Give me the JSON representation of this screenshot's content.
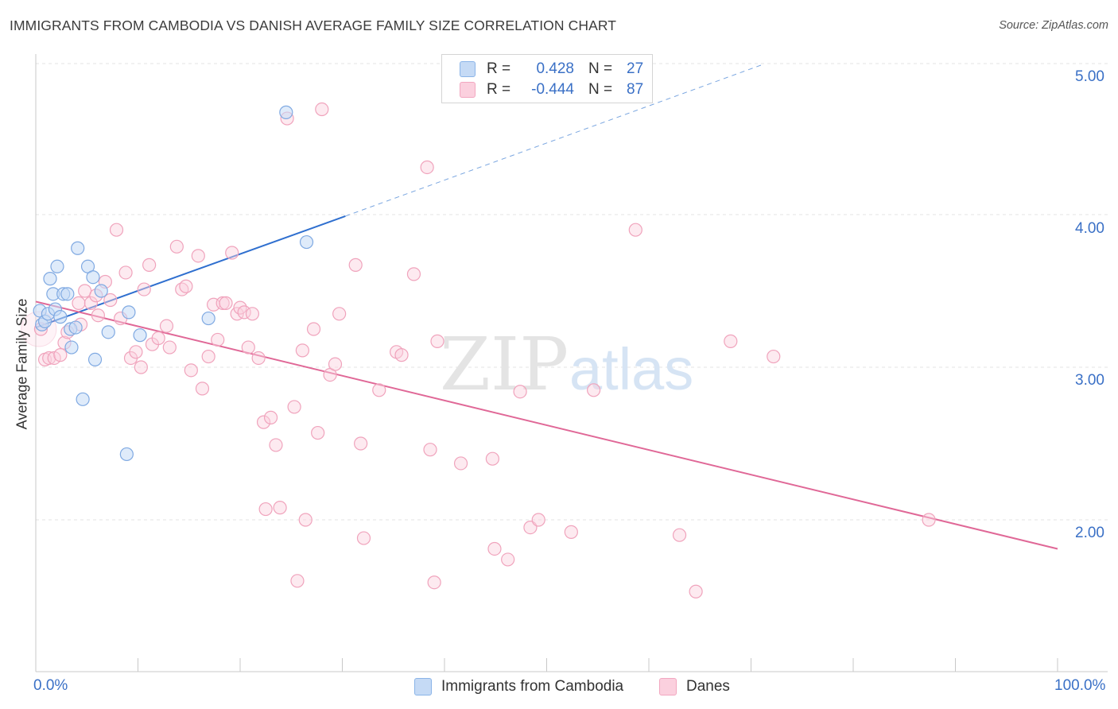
{
  "title": "IMMIGRANTS FROM CAMBODIA VS DANISH AVERAGE FAMILY SIZE CORRELATION CHART",
  "source": "Source: ZipAtlas.com",
  "watermark": {
    "zip": "ZIP",
    "atlas": "atlas"
  },
  "legend": {
    "rows": [
      {
        "r_label": "R =",
        "r_value": "0.428",
        "n_label": "N =",
        "n_value": "27",
        "color": "#8ab4e8",
        "fill": "#c5daf5"
      },
      {
        "r_label": "R =",
        "r_value": "-0.444",
        "n_label": "N =",
        "n_value": "87",
        "color": "#f2a7c0",
        "fill": "#fbd0de"
      }
    ]
  },
  "bottom_legend": [
    {
      "label": "Immigrants from Cambodia",
      "color": "#8ab4e8",
      "fill": "#c5daf5"
    },
    {
      "label": "Danes",
      "color": "#f2a7c0",
      "fill": "#fbd0de"
    }
  ],
  "x_ticks": {
    "left": "0.0%",
    "right": "100.0%"
  },
  "y_ticks": [
    "5.00",
    "4.00",
    "3.00",
    "2.00"
  ],
  "y_axis_title": "Average Family Size",
  "chart_data": {
    "type": "scatter",
    "title": "IMMIGRANTS FROM CAMBODIA VS DANISH AVERAGE FAMILY SIZE CORRELATION CHART",
    "xlabel": "",
    "ylabel": "Average Family Size",
    "xlim": [
      0,
      100
    ],
    "ylim": [
      1.0,
      5.1
    ],
    "y_ticks": [
      2.0,
      3.0,
      4.0,
      5.0
    ],
    "grid": "horizontal dashed",
    "legend_position": "top-center",
    "series": [
      {
        "name": "Immigrants from Cambodia",
        "color": "#6a9fe0",
        "R": 0.428,
        "N": 27,
        "points": [
          [
            0.4,
            3.37
          ],
          [
            0.6,
            3.28
          ],
          [
            0.9,
            3.3
          ],
          [
            1.2,
            3.35
          ],
          [
            1.4,
            3.58
          ],
          [
            1.7,
            3.48
          ],
          [
            1.9,
            3.38
          ],
          [
            2.1,
            3.66
          ],
          [
            2.4,
            3.33
          ],
          [
            2.7,
            3.48
          ],
          [
            3.1,
            3.48
          ],
          [
            3.4,
            3.25
          ],
          [
            3.5,
            3.13
          ],
          [
            3.9,
            3.26
          ],
          [
            4.1,
            3.78
          ],
          [
            4.6,
            2.79
          ],
          [
            5.1,
            3.66
          ],
          [
            5.6,
            3.59
          ],
          [
            5.8,
            3.05
          ],
          [
            6.4,
            3.5
          ],
          [
            7.1,
            3.23
          ],
          [
            8.9,
            2.43
          ],
          [
            9.1,
            3.36
          ],
          [
            10.2,
            3.21
          ],
          [
            16.9,
            3.32
          ],
          [
            24.5,
            4.67
          ],
          [
            26.5,
            3.82
          ]
        ],
        "trend": {
          "x0": 0,
          "y0": 3.26,
          "x1": 30.3,
          "y1": 3.99,
          "dashed_to_x": 71,
          "dashed_to_y": 4.98
        }
      },
      {
        "name": "Danes",
        "color": "#e66f9c",
        "R": -0.444,
        "N": 87,
        "points": [
          [
            0.5,
            3.25
          ],
          [
            0.9,
            3.05
          ],
          [
            1.3,
            3.06
          ],
          [
            1.8,
            3.06
          ],
          [
            2.4,
            3.08
          ],
          [
            2.8,
            3.16
          ],
          [
            3.1,
            3.23
          ],
          [
            4.2,
            3.42
          ],
          [
            4.4,
            3.28
          ],
          [
            4.8,
            3.5
          ],
          [
            5.4,
            3.42
          ],
          [
            5.9,
            3.47
          ],
          [
            6.1,
            3.34
          ],
          [
            6.8,
            3.56
          ],
          [
            7.3,
            3.44
          ],
          [
            7.9,
            3.9
          ],
          [
            8.3,
            3.32
          ],
          [
            8.8,
            3.62
          ],
          [
            9.3,
            3.06
          ],
          [
            9.8,
            3.1
          ],
          [
            10.3,
            3.0
          ],
          [
            10.6,
            3.51
          ],
          [
            11.1,
            3.67
          ],
          [
            11.4,
            3.15
          ],
          [
            12.0,
            3.19
          ],
          [
            12.8,
            3.27
          ],
          [
            13.1,
            3.13
          ],
          [
            13.8,
            3.79
          ],
          [
            14.3,
            3.51
          ],
          [
            14.7,
            3.53
          ],
          [
            15.2,
            2.98
          ],
          [
            15.9,
            3.73
          ],
          [
            16.3,
            2.86
          ],
          [
            16.9,
            3.07
          ],
          [
            17.4,
            3.41
          ],
          [
            17.8,
            3.18
          ],
          [
            18.3,
            3.42
          ],
          [
            18.6,
            3.42
          ],
          [
            19.2,
            3.75
          ],
          [
            19.7,
            3.35
          ],
          [
            20.0,
            3.39
          ],
          [
            20.4,
            3.36
          ],
          [
            20.8,
            3.13
          ],
          [
            21.2,
            3.35
          ],
          [
            21.8,
            3.06
          ],
          [
            22.3,
            2.64
          ],
          [
            22.5,
            2.07
          ],
          [
            23.0,
            2.67
          ],
          [
            23.5,
            2.49
          ],
          [
            23.9,
            2.08
          ],
          [
            24.6,
            4.63
          ],
          [
            25.3,
            2.74
          ],
          [
            25.6,
            1.6
          ],
          [
            26.1,
            3.11
          ],
          [
            26.4,
            2.0
          ],
          [
            27.2,
            3.25
          ],
          [
            27.6,
            2.57
          ],
          [
            28.0,
            4.69
          ],
          [
            28.8,
            2.95
          ],
          [
            29.3,
            3.02
          ],
          [
            29.7,
            3.35
          ],
          [
            31.3,
            3.67
          ],
          [
            31.8,
            2.5
          ],
          [
            32.1,
            1.88
          ],
          [
            33.6,
            2.85
          ],
          [
            35.3,
            3.1
          ],
          [
            35.8,
            3.08
          ],
          [
            37.0,
            3.61
          ],
          [
            38.3,
            4.31
          ],
          [
            38.6,
            2.46
          ],
          [
            39.0,
            1.59
          ],
          [
            39.3,
            3.17
          ],
          [
            41.6,
            2.37
          ],
          [
            44.7,
            2.4
          ],
          [
            44.9,
            1.81
          ],
          [
            46.2,
            1.74
          ],
          [
            47.4,
            2.84
          ],
          [
            48.4,
            1.95
          ],
          [
            49.2,
            2.0
          ],
          [
            52.4,
            1.92
          ],
          [
            54.6,
            2.85
          ],
          [
            58.7,
            3.9
          ],
          [
            63.0,
            1.9
          ],
          [
            64.6,
            1.53
          ],
          [
            68.0,
            3.17
          ],
          [
            72.2,
            3.07
          ],
          [
            87.4,
            2.0
          ]
        ],
        "trend": {
          "x0": 0,
          "y0": 3.43,
          "x1": 100,
          "y1": 1.81
        }
      }
    ]
  }
}
